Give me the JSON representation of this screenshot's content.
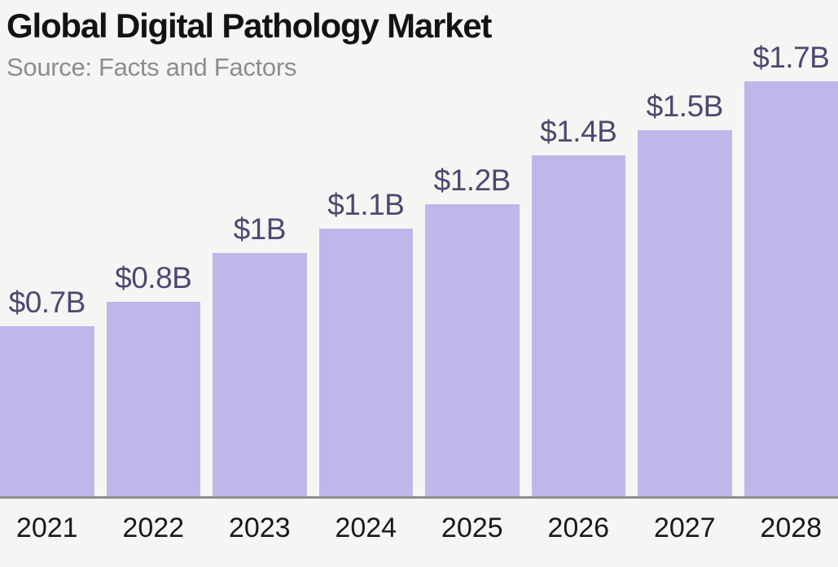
{
  "header": {
    "title": "Global Digital Pathology Market",
    "source": "Source: Facts and Factors"
  },
  "chart_data": {
    "type": "bar",
    "title": "Global Digital Pathology Market",
    "subtitle": "Source: Facts and Factors",
    "categories": [
      "2021",
      "2022",
      "2023",
      "2024",
      "2025",
      "2026",
      "2027",
      "2028"
    ],
    "values": [
      0.7,
      0.8,
      1.0,
      1.1,
      1.2,
      1.4,
      1.5,
      1.7
    ],
    "value_labels": [
      "$0.7B",
      "$0.8B",
      "$1B",
      "$1.1B",
      "$1.2B",
      "$1.4B",
      "$1.5B",
      "$1.7B"
    ],
    "xlabel": "",
    "ylabel": "",
    "ylim": [
      0,
      1.8
    ],
    "grid": false,
    "legend": false,
    "colors": {
      "background": "#f6f5f3",
      "bar": "#c1b6e9",
      "value_label": "#4e4870",
      "axis_line": "#8e8e8e",
      "title": "#131313",
      "subtitle": "#8d8d8d",
      "year_label": "#191919"
    }
  }
}
